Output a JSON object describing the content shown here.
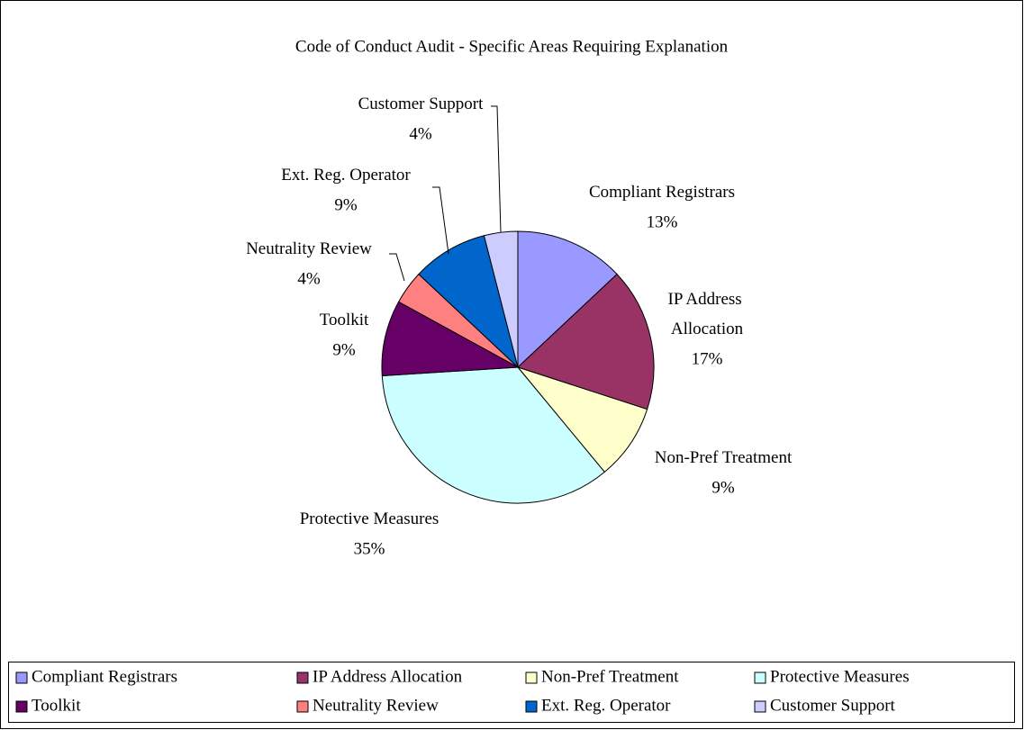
{
  "chart_data": {
    "type": "pie",
    "title": "Code of Conduct Audit - Specific Areas Requiring Explanation",
    "categories": [
      "Compliant Registrars",
      "IP Address Allocation",
      "Non-Pref Treatment",
      "Protective Measures",
      "Toolkit",
      "Neutrality Review",
      "Ext. Reg. Operator",
      "Customer Support"
    ],
    "values": [
      13,
      17,
      9,
      35,
      9,
      4,
      9,
      4
    ],
    "value_labels": [
      "13%",
      "17%",
      "9%",
      "35%",
      "9%",
      "4%",
      "9%",
      "4%"
    ],
    "colors": [
      "#9999ff",
      "#993366",
      "#ffffcc",
      "#ccffff",
      "#660066",
      "#ff8080",
      "#0066cc",
      "#ccccff"
    ],
    "legend": "bottom"
  }
}
